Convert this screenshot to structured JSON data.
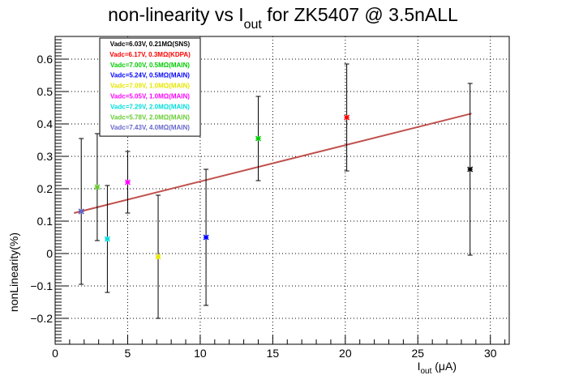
{
  "chart_data": {
    "type": "scatter",
    "title": {
      "main": "non-linearity vs I",
      "sub": "out",
      "rest": " for ZK5407 @ 3.5nALL"
    },
    "xlabel": {
      "main": "I",
      "sub": "out",
      "rest": " (μA)"
    },
    "ylabel": "nonLinearity(%)",
    "xlim": [
      0,
      31.3
    ],
    "ylim": [
      -0.28,
      0.67
    ],
    "x_ticks": [
      0,
      5,
      10,
      15,
      20,
      25,
      30
    ],
    "y_ticks": [
      -0.2,
      -0.1,
      0,
      0.1,
      0.2,
      0.3,
      0.4,
      0.5,
      0.6
    ],
    "y_tick_labels": [
      "−0.2",
      "−0.1",
      "0",
      "0.1",
      "0.2",
      "0.3",
      "0.4",
      "0.5",
      "0.6"
    ],
    "grid": true,
    "legend_position": "top-left",
    "fit_line": {
      "color": "#c0504d",
      "x": [
        1.3,
        28.7
      ],
      "y": [
        0.125,
        0.432
      ]
    },
    "series": [
      {
        "name": "Vadc=6.03V, 0.21MΩ(SNS)",
        "color": "#000000",
        "points": [
          {
            "x": 1.8,
            "y": 0.13,
            "err": 0.225
          },
          {
            "x": 28.6,
            "y": 0.26,
            "err": 0.265
          }
        ]
      },
      {
        "name": "Vadc=6.17V, 0.3MΩ(KDPA)",
        "color": "#ff0000",
        "points": [
          {
            "x": 20.1,
            "y": 0.42,
            "err": 0.165
          }
        ]
      },
      {
        "name": "Vadc=7.00V, 0.5MΩ(MAIN)",
        "color": "#00cc00",
        "points": [
          {
            "x": 14.0,
            "y": 0.355,
            "err": 0.13
          }
        ]
      },
      {
        "name": "Vadc=5.24V, 0.5MΩ(MAIN)",
        "color": "#0000ff",
        "points": [
          {
            "x": 10.4,
            "y": 0.05,
            "err": 0.21
          }
        ]
      },
      {
        "name": "Vadc=7.09V, 1.0MΩ(MAIN)",
        "color": "#e6e600",
        "points": [
          {
            "x": 7.1,
            "y": -0.01,
            "err": 0.19
          }
        ]
      },
      {
        "name": "Vadc=5.05V, 1.0MΩ(MAIN)",
        "color": "#ff00ff",
        "points": [
          {
            "x": 5.0,
            "y": 0.22,
            "err": 0.095
          }
        ]
      },
      {
        "name": "Vadc=7.29V, 2.0MΩ(MAIN)",
        "color": "#00dddd",
        "points": [
          {
            "x": 3.6,
            "y": 0.045,
            "err": 0.165
          }
        ]
      },
      {
        "name": "Vadc=5.78V, 2.0MΩ(MAIN)",
        "color": "#66cc33",
        "points": [
          {
            "x": 2.9,
            "y": 0.205,
            "err": 0.165
          }
        ]
      },
      {
        "name": "Vadc=7.43V, 4.0MΩ(MAIN)",
        "color": "#6666cc",
        "points": [
          {
            "x": 1.8,
            "y": 0.13,
            "err": 0.0
          }
        ]
      }
    ]
  }
}
